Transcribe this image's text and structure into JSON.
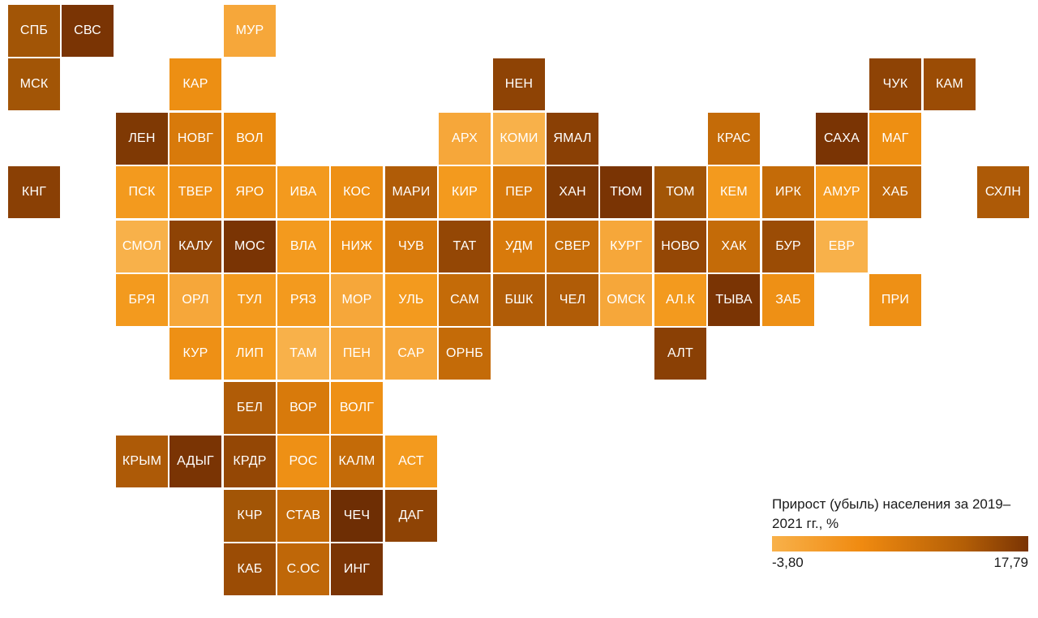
{
  "map": {
    "regions": [
      {
        "label": "СПБ",
        "col": 0,
        "row": 0,
        "color": "#a25506"
      },
      {
        "label": "СВС",
        "col": 1,
        "row": 0,
        "color": "#7a3404"
      },
      {
        "label": "МУР",
        "col": 4,
        "row": 0,
        "color": "#f6a73a"
      },
      {
        "label": "МСК",
        "col": 0,
        "row": 1,
        "color": "#a25506"
      },
      {
        "label": "КАР",
        "col": 3,
        "row": 1,
        "color": "#ed8f13"
      },
      {
        "label": "НЕН",
        "col": 9,
        "row": 1,
        "color": "#8e4305"
      },
      {
        "label": "ЧУК",
        "col": 16,
        "row": 1,
        "color": "#8e4305"
      },
      {
        "label": "КАМ",
        "col": 17,
        "row": 1,
        "color": "#9b4c05"
      },
      {
        "label": "ЛЕН",
        "col": 2,
        "row": 2,
        "color": "#7f3904"
      },
      {
        "label": "НОВГ",
        "col": 3,
        "row": 2,
        "color": "#d87a0b"
      },
      {
        "label": "ВОЛ",
        "col": 4,
        "row": 2,
        "color": "#e8890f"
      },
      {
        "label": "АРХ",
        "col": 8,
        "row": 2,
        "color": "#f6a73a"
      },
      {
        "label": "КОМИ",
        "col": 9,
        "row": 2,
        "color": "#f8b14a"
      },
      {
        "label": "ЯМАЛ",
        "col": 10,
        "row": 2,
        "color": "#8a4005"
      },
      {
        "label": "КРАС",
        "col": 13,
        "row": 2,
        "color": "#c46b08"
      },
      {
        "label": "САХА",
        "col": 15,
        "row": 2,
        "color": "#7a3404"
      },
      {
        "label": "МАГ",
        "col": 16,
        "row": 2,
        "color": "#ee8f12"
      },
      {
        "label": "КНГ",
        "col": 0,
        "row": 3,
        "color": "#8a4005"
      },
      {
        "label": "ПСК",
        "col": 2,
        "row": 3,
        "color": "#f39a1e"
      },
      {
        "label": "ТВЕР",
        "col": 3,
        "row": 3,
        "color": "#ee9015"
      },
      {
        "label": "ЯРО",
        "col": 4,
        "row": 3,
        "color": "#ed8f13"
      },
      {
        "label": "ИВА",
        "col": 5,
        "row": 3,
        "color": "#f39a1e"
      },
      {
        "label": "КОС",
        "col": 6,
        "row": 3,
        "color": "#ee9015"
      },
      {
        "label": "МАРИ",
        "col": 7,
        "row": 3,
        "color": "#b05c07"
      },
      {
        "label": "КИР",
        "col": 8,
        "row": 3,
        "color": "#f39a1e"
      },
      {
        "label": "ПЕР",
        "col": 9,
        "row": 3,
        "color": "#d87a0b"
      },
      {
        "label": "ХАН",
        "col": 10,
        "row": 3,
        "color": "#7f3904"
      },
      {
        "label": "ТЮМ",
        "col": 11,
        "row": 3,
        "color": "#7a3404"
      },
      {
        "label": "ТОМ",
        "col": 12,
        "row": 3,
        "color": "#a25506"
      },
      {
        "label": "КЕМ",
        "col": 13,
        "row": 3,
        "color": "#f39a1e"
      },
      {
        "label": "ИРК",
        "col": 14,
        "row": 3,
        "color": "#c46b08"
      },
      {
        "label": "АМУР",
        "col": 15,
        "row": 3,
        "color": "#f39a1e"
      },
      {
        "label": "ХАБ",
        "col": 16,
        "row": 3,
        "color": "#bf6708"
      },
      {
        "label": "СХЛН",
        "col": 18,
        "row": 3,
        "color": "#ad5a07"
      },
      {
        "label": "СМОЛ",
        "col": 2,
        "row": 4,
        "color": "#f8b14a"
      },
      {
        "label": "КАЛУ",
        "col": 3,
        "row": 4,
        "color": "#8e4305"
      },
      {
        "label": "МОС",
        "col": 4,
        "row": 4,
        "color": "#7a3404"
      },
      {
        "label": "ВЛА",
        "col": 5,
        "row": 4,
        "color": "#f39a1e"
      },
      {
        "label": "НИЖ",
        "col": 6,
        "row": 4,
        "color": "#ee9015"
      },
      {
        "label": "ЧУВ",
        "col": 7,
        "row": 4,
        "color": "#d87a0b"
      },
      {
        "label": "ТАТ",
        "col": 8,
        "row": 4,
        "color": "#944705"
      },
      {
        "label": "УДМ",
        "col": 9,
        "row": 4,
        "color": "#d87a0b"
      },
      {
        "label": "СВЕР",
        "col": 10,
        "row": 4,
        "color": "#c46b08"
      },
      {
        "label": "КУРГ",
        "col": 11,
        "row": 4,
        "color": "#f6a73a"
      },
      {
        "label": "НОВО",
        "col": 12,
        "row": 4,
        "color": "#944705"
      },
      {
        "label": "ХАК",
        "col": 13,
        "row": 4,
        "color": "#c46b08"
      },
      {
        "label": "БУР",
        "col": 14,
        "row": 4,
        "color": "#9b4c05"
      },
      {
        "label": "ЕВР",
        "col": 15,
        "row": 4,
        "color": "#f8b14a"
      },
      {
        "label": "БРЯ",
        "col": 2,
        "row": 5,
        "color": "#f39a1e"
      },
      {
        "label": "ОРЛ",
        "col": 3,
        "row": 5,
        "color": "#f6a73a"
      },
      {
        "label": "ТУЛ",
        "col": 4,
        "row": 5,
        "color": "#f39a1e"
      },
      {
        "label": "РЯЗ",
        "col": 5,
        "row": 5,
        "color": "#f39a1e"
      },
      {
        "label": "МОР",
        "col": 6,
        "row": 5,
        "color": "#f6a73a"
      },
      {
        "label": "УЛЬ",
        "col": 7,
        "row": 5,
        "color": "#f39a1e"
      },
      {
        "label": "САМ",
        "col": 8,
        "row": 5,
        "color": "#c46b08"
      },
      {
        "label": "БШК",
        "col": 9,
        "row": 5,
        "color": "#b05c07"
      },
      {
        "label": "ЧЕЛ",
        "col": 10,
        "row": 5,
        "color": "#b05c07"
      },
      {
        "label": "ОМСК",
        "col": 11,
        "row": 5,
        "color": "#f6a73a"
      },
      {
        "label": "АЛ.К",
        "col": 12,
        "row": 5,
        "color": "#f39a1e"
      },
      {
        "label": "ТЫВА",
        "col": 13,
        "row": 5,
        "color": "#7a3404"
      },
      {
        "label": "ЗАБ",
        "col": 14,
        "row": 5,
        "color": "#ee9015"
      },
      {
        "label": "ПРИ",
        "col": 16,
        "row": 5,
        "color": "#ee9015"
      },
      {
        "label": "КУР",
        "col": 3,
        "row": 6,
        "color": "#ee9015"
      },
      {
        "label": "ЛИП",
        "col": 4,
        "row": 6,
        "color": "#f39a1e"
      },
      {
        "label": "ТАМ",
        "col": 5,
        "row": 6,
        "color": "#f8b14a"
      },
      {
        "label": "ПЕН",
        "col": 6,
        "row": 6,
        "color": "#f6a73a"
      },
      {
        "label": "САР",
        "col": 7,
        "row": 6,
        "color": "#f6a73a"
      },
      {
        "label": "ОРНБ",
        "col": 8,
        "row": 6,
        "color": "#c46b08"
      },
      {
        "label": "АЛТ",
        "col": 12,
        "row": 6,
        "color": "#8a4005"
      },
      {
        "label": "БЕЛ",
        "col": 4,
        "row": 7,
        "color": "#b05c07"
      },
      {
        "label": "ВОР",
        "col": 5,
        "row": 7,
        "color": "#d87a0b"
      },
      {
        "label": "ВОЛГ",
        "col": 6,
        "row": 7,
        "color": "#ee9015"
      },
      {
        "label": "КРЫМ",
        "col": 2,
        "row": 8,
        "color": "#ad5a07"
      },
      {
        "label": "АДЫГ",
        "col": 3,
        "row": 8,
        "color": "#7a3404"
      },
      {
        "label": "КРДР",
        "col": 4,
        "row": 8,
        "color": "#944705"
      },
      {
        "label": "РОС",
        "col": 5,
        "row": 8,
        "color": "#ee9015"
      },
      {
        "label": "КАЛМ",
        "col": 6,
        "row": 8,
        "color": "#c46b08"
      },
      {
        "label": "АСТ",
        "col": 7,
        "row": 8,
        "color": "#f39a1e"
      },
      {
        "label": "КЧР",
        "col": 4,
        "row": 9,
        "color": "#a25506"
      },
      {
        "label": "СТАВ",
        "col": 5,
        "row": 9,
        "color": "#c46b08"
      },
      {
        "label": "ЧЕЧ",
        "col": 6,
        "row": 9,
        "color": "#6e2e04"
      },
      {
        "label": "ДАГ",
        "col": 7,
        "row": 9,
        "color": "#8e4305"
      },
      {
        "label": "КАБ",
        "col": 4,
        "row": 10,
        "color": "#9b4c05"
      },
      {
        "label": "С.ОС",
        "col": 5,
        "row": 10,
        "color": "#bf6708"
      },
      {
        "label": "ИНГ",
        "col": 6,
        "row": 10,
        "color": "#7a3404"
      }
    ]
  },
  "legend": {
    "title": "Прирост (убыль) населения за 2019–2021 гг., %",
    "min_label": "-3,80",
    "max_label": "17,79",
    "min_value": -3.8,
    "max_value": 17.79,
    "low_color": "#f8b14a",
    "high_color": "#7a3404"
  }
}
